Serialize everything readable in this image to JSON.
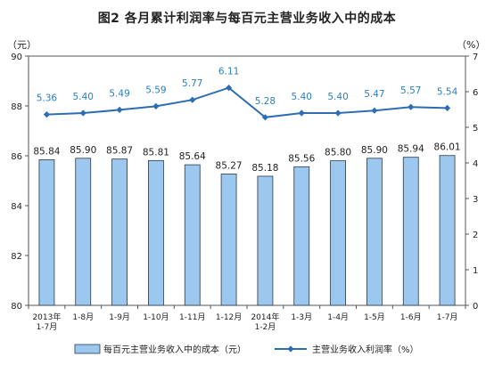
{
  "title": "图2  各月累计利润率与每百元主营业务收入中的成本",
  "left_unit": "（元）",
  "right_unit": "（%）",
  "colors": {
    "bar_fill": "#9cc8ef",
    "bar_stroke": "#2a3a4a",
    "line": "#2e6db3",
    "line_label": "#2b7fc1",
    "axis": "#555555"
  },
  "chart_data": {
    "type": "bar",
    "categories": [
      [
        "2013年",
        "1-7月"
      ],
      [
        "1-8月"
      ],
      [
        "1-9月"
      ],
      [
        "1-10月"
      ],
      [
        "1-11月"
      ],
      [
        "1-12月"
      ],
      [
        "2014年",
        "1-2月"
      ],
      [
        "1-3月"
      ],
      [
        "1-4月"
      ],
      [
        "1-5月"
      ],
      [
        "1-6月"
      ],
      [
        "1-7月"
      ]
    ],
    "series": [
      {
        "name": "每百元主营业务收入中的成本（元）",
        "type": "bar",
        "axis": "left",
        "values": [
          85.84,
          85.9,
          85.87,
          85.81,
          85.64,
          85.27,
          85.18,
          85.56,
          85.8,
          85.9,
          85.94,
          86.01
        ],
        "labels": [
          "85.84",
          "85.90",
          "85.87",
          "85.81",
          "85.64",
          "85.27",
          "85.18",
          "85.56",
          "85.80",
          "85.90",
          "85.94",
          "86.01"
        ]
      },
      {
        "name": "主营业务收入利润率（%）",
        "type": "line",
        "axis": "right",
        "values": [
          5.36,
          5.4,
          5.49,
          5.59,
          5.77,
          6.11,
          5.28,
          5.4,
          5.4,
          5.47,
          5.57,
          5.54
        ],
        "labels": [
          "5.36",
          "5.40",
          "5.49",
          "5.59",
          "5.77",
          "6.11",
          "5.28",
          "5.40",
          "5.40",
          "5.47",
          "5.57",
          "5.54"
        ]
      }
    ],
    "y_left": {
      "min": 80,
      "max": 90,
      "ticks": [
        "80",
        "82",
        "84",
        "86",
        "88",
        "90"
      ]
    },
    "y_right": {
      "min": 0,
      "max": 7,
      "ticks": [
        "0",
        "1",
        "2",
        "3",
        "4",
        "5",
        "6",
        "7"
      ]
    },
    "legend_position": "bottom",
    "grid": false
  }
}
